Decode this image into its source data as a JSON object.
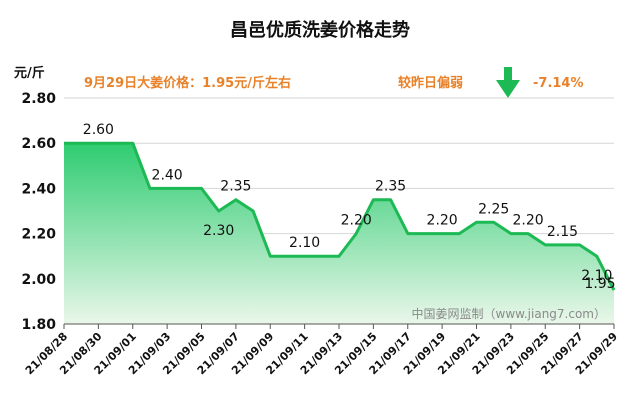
{
  "chart_data": {
    "type": "area",
    "title": "昌邑优质洗姜价格走势",
    "ylabel": "元/斤",
    "ylim": [
      1.8,
      2.8
    ],
    "yticks": [
      "1.80",
      "2.00",
      "2.20",
      "2.40",
      "2.60",
      "2.80"
    ],
    "x": [
      "21/08/28",
      "21/08/29",
      "21/08/30",
      "21/08/31",
      "21/09/01",
      "21/09/02",
      "21/09/03",
      "21/09/04",
      "21/09/05",
      "21/09/06",
      "21/09/07",
      "21/09/08",
      "21/09/09",
      "21/09/10",
      "21/09/11",
      "21/09/12",
      "21/09/13",
      "21/09/14",
      "21/09/15",
      "21/09/16",
      "21/09/17",
      "21/09/18",
      "21/09/19",
      "21/09/20",
      "21/09/21",
      "21/09/22",
      "21/09/23",
      "21/09/24",
      "21/09/25",
      "21/09/26",
      "21/09/27",
      "21/09/28",
      "21/09/29"
    ],
    "x_tick_labels": [
      "21/08/28",
      "21/08/30",
      "21/09/01",
      "21/09/03",
      "21/09/05",
      "21/09/07",
      "21/09/09",
      "21/09/11",
      "21/09/13",
      "21/09/15",
      "21/09/17",
      "21/09/19",
      "21/09/21",
      "21/09/23",
      "21/09/25",
      "21/09/27",
      "21/09/29"
    ],
    "values": [
      2.6,
      2.6,
      2.6,
      2.6,
      2.6,
      2.4,
      2.4,
      2.4,
      2.4,
      2.3,
      2.35,
      2.3,
      2.1,
      2.1,
      2.1,
      2.1,
      2.1,
      2.2,
      2.35,
      2.35,
      2.2,
      2.2,
      2.2,
      2.2,
      2.25,
      2.25,
      2.2,
      2.2,
      2.15,
      2.15,
      2.15,
      2.1,
      1.95
    ],
    "data_labels": [
      {
        "x": "21/08/30",
        "text": "2.60"
      },
      {
        "x": "21/09/03",
        "text": "2.40"
      },
      {
        "x": "21/09/06",
        "text": "2.30"
      },
      {
        "x": "21/09/07",
        "text": "2.35"
      },
      {
        "x": "21/09/11",
        "text": "2.10"
      },
      {
        "x": "21/09/14",
        "text": "2.20"
      },
      {
        "x": "21/09/16",
        "text": "2.35"
      },
      {
        "x": "21/09/19",
        "text": "2.20"
      },
      {
        "x": "21/09/22",
        "text": "2.25"
      },
      {
        "x": "21/09/24",
        "text": "2.20"
      },
      {
        "x": "21/09/26",
        "text": "2.15"
      },
      {
        "x": "21/09/28",
        "text": "2.10"
      },
      {
        "x": "21/09/29",
        "text": "1.95"
      }
    ],
    "grid": true,
    "colors": {
      "line": "#1db954",
      "fill_top": "#2ecc71",
      "fill_bottom": "#eaf7ea",
      "info": "#e8822a",
      "arrow": "#1db954"
    }
  },
  "info": {
    "price_text": "9月29日大姜价格：1.95元/斤左右",
    "change_text": "较昨日偏弱",
    "change_value": "-7.14%",
    "arrow_icon": "down-arrow-icon"
  },
  "watermark": "中国姜网监制（www.jiang7.com）"
}
